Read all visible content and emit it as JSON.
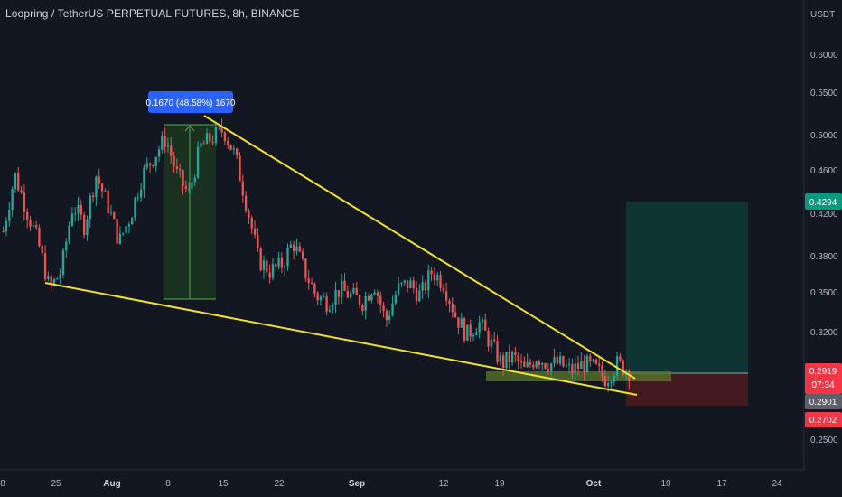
{
  "header": {
    "title": "Loopring / TetherUS PERPETUAL FUTURES, 8h, BINANCE"
  },
  "colors": {
    "background": "#131722",
    "up": "#26a69a",
    "down": "#ef5350",
    "trendline": "#f0e130",
    "measure_fill": "#1e3b22",
    "measure_line": "#4caf50",
    "measure_badge": "#2962ff",
    "target_zone": "#0d3d3a",
    "stop_zone": "#4a1a1f",
    "entry_zone": "#4f6b2a",
    "badge_price": "#089981",
    "badge_entry": "#f23645",
    "badge_stop": "#f23645",
    "badge_countdown": "#f23645",
    "badge_grey": "#5d606b"
  },
  "price_axis": {
    "currency": "USDT",
    "labels": [
      "0.6000",
      "0.5500",
      "0.5000",
      "0.4600",
      "0.4200",
      "0.3800",
      "0.3500",
      "0.3200",
      "0.2500"
    ]
  },
  "time_axis": {
    "labels": [
      "8",
      "25",
      "Aug",
      "8",
      "15",
      "22",
      "Sep",
      "12",
      "19",
      "Oct",
      "10",
      "17",
      "24"
    ],
    "bold": [
      "Aug",
      "Sep",
      "Oct"
    ]
  },
  "badges": {
    "last_price": "0.4294",
    "current_price": "0.2919",
    "countdown": "07:34",
    "entry": "0.2901",
    "stop": "0.2702"
  },
  "measure": {
    "label": "0.1670 (48.58%) 1670"
  },
  "chart_data": {
    "type": "candlestick",
    "title": "Loopring / TetherUS PERPETUAL FUTURES, 8h, BINANCE",
    "y_axis": "USDT",
    "ylim": [
      0.23,
      0.65
    ],
    "scale": "log",
    "grid": false,
    "x_ticks": [
      "8",
      "25",
      "Aug",
      "8",
      "15",
      "22",
      "Sep",
      "12",
      "19",
      "Oct",
      "10",
      "17",
      "24"
    ],
    "y_ticks": [
      0.6,
      0.55,
      0.5,
      0.46,
      0.42,
      0.38,
      0.35,
      0.32,
      0.25
    ],
    "series_close_path": [
      0.405,
      0.46,
      0.425,
      0.395,
      0.355,
      0.37,
      0.43,
      0.41,
      0.46,
      0.43,
      0.395,
      0.42,
      0.46,
      0.48,
      0.5,
      0.46,
      0.44,
      0.49,
      0.5,
      0.51,
      0.48,
      0.43,
      0.38,
      0.37,
      0.375,
      0.395,
      0.37,
      0.35,
      0.345,
      0.355,
      0.35,
      0.345,
      0.36,
      0.33,
      0.355,
      0.36,
      0.35,
      0.37,
      0.36,
      0.335,
      0.32,
      0.33,
      0.315,
      0.3,
      0.305,
      0.295,
      0.305,
      0.3,
      0.3,
      0.295,
      0.3,
      0.297,
      0.29,
      0.3,
      0.295
    ],
    "annotations": [
      {
        "type": "measure",
        "label": "0.1670 (48.58%) 1670"
      },
      {
        "type": "position_target_zone"
      },
      {
        "type": "position_stop_zone"
      },
      {
        "type": "falling_wedge_trendlines"
      }
    ]
  }
}
